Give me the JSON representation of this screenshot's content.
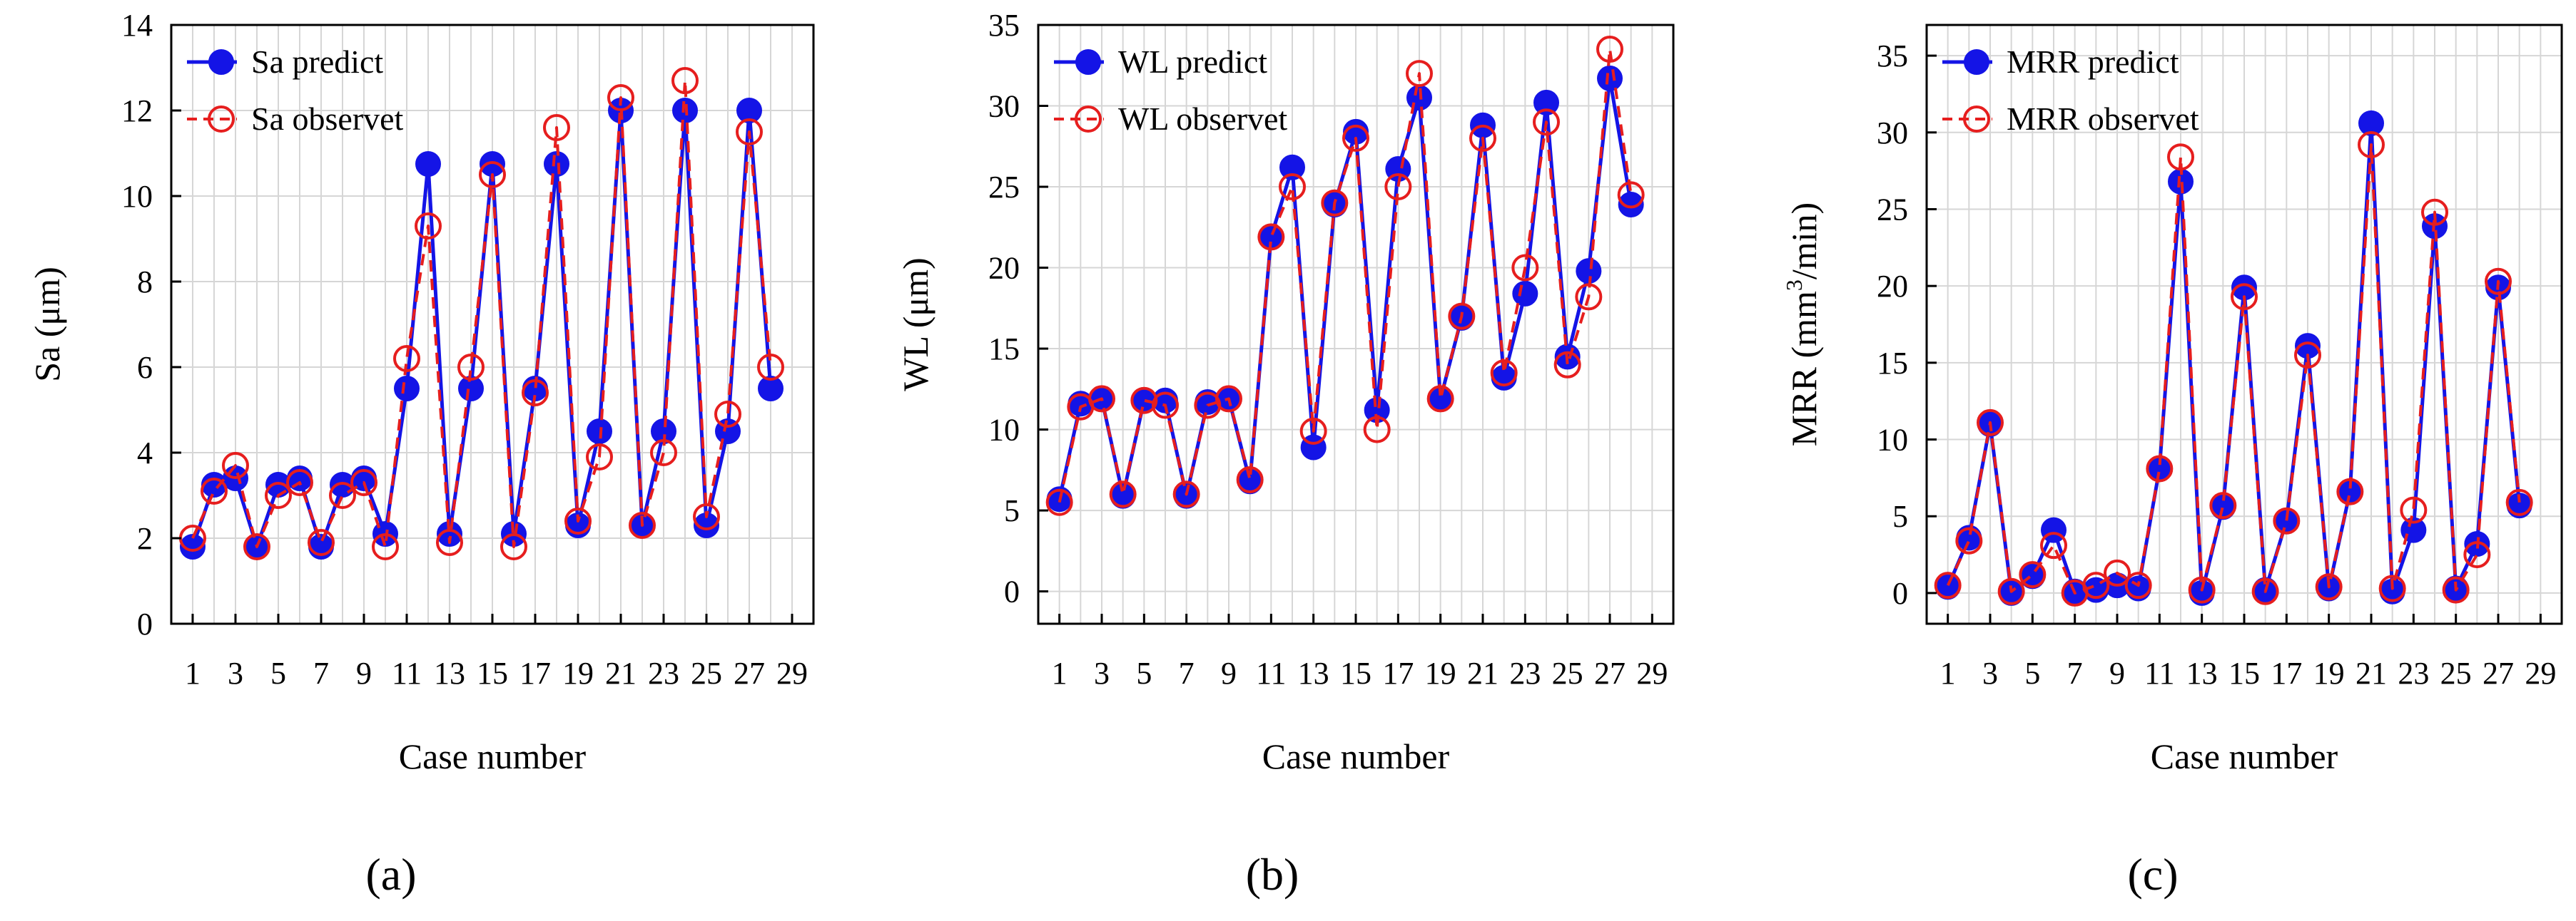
{
  "chart_data": [
    {
      "type": "line",
      "panel_label": "(a)",
      "xlabel": "Case number",
      "ylabel": "Sa (μm)",
      "xlim": [
        0,
        30
      ],
      "ylim": [
        0,
        14
      ],
      "xticks": [
        "1",
        "3",
        "5",
        "7",
        "9",
        "11",
        "13",
        "15",
        "17",
        "19",
        "21",
        "23",
        "25",
        "27",
        "29"
      ],
      "yticks": [
        "0",
        "2",
        "4",
        "6",
        "8",
        "10",
        "12",
        "14"
      ],
      "x": [
        1,
        2,
        3,
        4,
        5,
        6,
        7,
        8,
        9,
        10,
        11,
        12,
        13,
        14,
        15,
        16,
        17,
        18,
        19,
        20,
        21,
        22,
        23,
        24,
        25,
        26,
        27,
        28
      ],
      "series": [
        {
          "name": "Sa predict",
          "style": "predict",
          "values": [
            1.8,
            3.25,
            3.4,
            1.8,
            3.25,
            3.4,
            1.8,
            3.25,
            3.4,
            2.1,
            5.5,
            10.75,
            2.1,
            5.5,
            10.75,
            2.1,
            5.5,
            10.75,
            2.3,
            4.5,
            12.0,
            2.3,
            4.5,
            12.0,
            2.3,
            4.5,
            12.0,
            5.5
          ]
        },
        {
          "name": "Sa observet",
          "style": "observed",
          "values": [
            2.0,
            3.1,
            3.7,
            1.8,
            3.0,
            3.3,
            1.9,
            3.0,
            3.3,
            1.8,
            6.2,
            9.3,
            1.9,
            6.0,
            10.5,
            1.8,
            5.4,
            11.6,
            2.4,
            3.9,
            12.3,
            2.3,
            4.0,
            12.7,
            2.5,
            4.9,
            11.5,
            6.0
          ]
        }
      ],
      "legend_position": "top-left"
    },
    {
      "type": "line",
      "panel_label": "(b)",
      "xlabel": "Case number",
      "ylabel": "WL (μm)",
      "xlim": [
        0,
        30
      ],
      "ylim": [
        -2,
        35
      ],
      "xticks": [
        "1",
        "3",
        "5",
        "7",
        "9",
        "11",
        "13",
        "15",
        "17",
        "19",
        "21",
        "23",
        "25",
        "27",
        "29"
      ],
      "yticks": [
        "0",
        "5",
        "10",
        "15",
        "20",
        "25",
        "30",
        "35"
      ],
      "x": [
        1,
        2,
        3,
        4,
        5,
        6,
        7,
        8,
        9,
        10,
        11,
        12,
        13,
        14,
        15,
        16,
        17,
        18,
        19,
        20,
        21,
        22,
        23,
        24,
        25,
        26,
        27,
        28
      ],
      "series": [
        {
          "name": "WL predict",
          "style": "predict",
          "values": [
            5.7,
            11.6,
            11.9,
            5.9,
            11.8,
            11.8,
            5.9,
            11.7,
            11.9,
            6.8,
            21.9,
            26.2,
            8.9,
            23.9,
            28.4,
            11.2,
            26.1,
            30.5,
            11.9,
            16.9,
            28.8,
            13.2,
            18.4,
            30.2,
            14.5,
            19.8,
            31.7,
            23.9
          ]
        },
        {
          "name": "WL observet",
          "style": "observed",
          "values": [
            5.5,
            11.4,
            11.9,
            6.0,
            11.8,
            11.5,
            6.0,
            11.5,
            11.9,
            6.9,
            21.9,
            25.0,
            9.9,
            24.0,
            28.0,
            10.0,
            25.0,
            32.0,
            11.9,
            17.0,
            28.0,
            13.5,
            20.0,
            29.0,
            14.0,
            18.2,
            33.5,
            24.5
          ]
        }
      ],
      "legend_position": "top-left"
    },
    {
      "type": "line",
      "panel_label": "(c)",
      "xlabel": "Case number",
      "ylabel_parts": [
        "MRR (mm",
        "3",
        "/min)"
      ],
      "xlim": [
        0,
        30
      ],
      "ylim": [
        -2,
        37
      ],
      "xticks": [
        "1",
        "3",
        "5",
        "7",
        "9",
        "11",
        "13",
        "15",
        "17",
        "19",
        "21",
        "23",
        "25",
        "27",
        "29"
      ],
      "yticks": [
        "0",
        "5",
        "10",
        "15",
        "20",
        "25",
        "30",
        "35"
      ],
      "x": [
        1,
        2,
        3,
        4,
        5,
        6,
        7,
        8,
        9,
        10,
        11,
        12,
        13,
        14,
        15,
        16,
        17,
        18,
        19,
        20,
        21,
        22,
        23,
        24,
        25,
        26,
        27,
        28
      ],
      "series": [
        {
          "name": "MRR predict",
          "style": "predict",
          "values": [
            0.4,
            3.6,
            11.0,
            0.0,
            1.1,
            4.1,
            0.1,
            0.2,
            0.5,
            0.3,
            8.1,
            26.8,
            0.0,
            5.6,
            19.9,
            0.2,
            4.7,
            16.1,
            0.3,
            6.6,
            30.6,
            0.1,
            4.1,
            23.9,
            0.3,
            3.2,
            19.9,
            5.7
          ]
        },
        {
          "name": "MRR observet",
          "style": "observed",
          "values": [
            0.5,
            3.4,
            11.1,
            0.1,
            1.2,
            3.1,
            0.0,
            0.5,
            1.3,
            0.5,
            8.1,
            28.4,
            0.2,
            5.7,
            19.3,
            0.1,
            4.7,
            15.5,
            0.4,
            6.6,
            29.2,
            0.3,
            5.4,
            24.8,
            0.2,
            2.5,
            20.3,
            5.9
          ]
        }
      ],
      "legend_position": "top-left"
    }
  ],
  "colors": {
    "predict": "#1414e6",
    "observed": "#e61e1e",
    "grid": "#d6d6d6",
    "axis": "#000000"
  }
}
